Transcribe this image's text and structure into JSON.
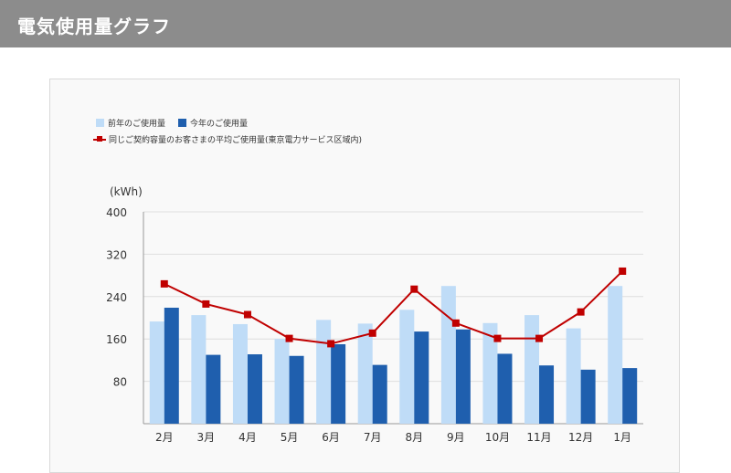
{
  "header": {
    "title": "電気使用量グラフ"
  },
  "legend": {
    "prev_year": "前年のご使用量",
    "this_year": "今年のご使用量",
    "average": "同じご契約容量のお客さまの平均ご使用量(東京電力サービス区域内)"
  },
  "colors": {
    "header_bg": "#8c8c8c",
    "prev_year": "#bfdcf7",
    "this_year": "#1f5fae",
    "average": "#c00000"
  },
  "chart_data": {
    "type": "bar",
    "ylabel": "(kWh)",
    "ylim": [
      0,
      400
    ],
    "yticks": [
      80,
      160,
      240,
      320,
      400
    ],
    "grid": true,
    "legend_position": "top-left",
    "categories": [
      "2月",
      "3月",
      "4月",
      "5月",
      "6月",
      "7月",
      "8月",
      "9月",
      "10月",
      "11月",
      "12月",
      "1月"
    ],
    "series": [
      {
        "name": "前年のご使用量",
        "type": "bar",
        "values": [
          193,
          205,
          188,
          160,
          196,
          189,
          215,
          260,
          190,
          205,
          180,
          260
        ]
      },
      {
        "name": "今年のご使用量",
        "type": "bar",
        "values": [
          219,
          130,
          131,
          128,
          150,
          111,
          174,
          178,
          132,
          110,
          102,
          105
        ]
      },
      {
        "name": "同じご契約容量のお客さまの平均ご使用量(東京電力サービス区域内)",
        "type": "line",
        "values": [
          264,
          226,
          206,
          161,
          151,
          171,
          254,
          190,
          161,
          161,
          211,
          288
        ]
      }
    ]
  }
}
